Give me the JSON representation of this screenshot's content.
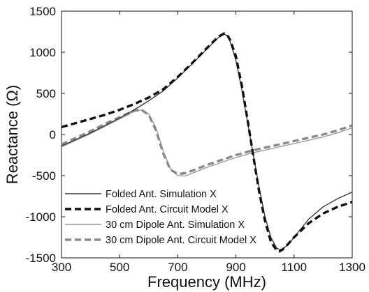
{
  "chart_data": {
    "type": "line",
    "title": "",
    "xlabel": "Frequency (MHz)",
    "ylabel": "Reactance (Ω)",
    "xlim": [
      300,
      1300
    ],
    "ylim": [
      -1500,
      1500
    ],
    "xticks": [
      "300",
      "500",
      "700",
      "900",
      "1100",
      "1300"
    ],
    "yticks": [
      "1500",
      "1000",
      "500",
      "0",
      "-500",
      "-1000",
      "-1500"
    ],
    "grid": false,
    "legend_position": "bottom-left",
    "series": [
      {
        "name": "Folded Ant. Simulation X",
        "color": "#3a3a3a",
        "style": "solid-thin",
        "x": [
          300,
          350,
          400,
          450,
          500,
          550,
          600,
          650,
          700,
          750,
          800,
          820,
          840,
          860,
          870,
          880,
          900,
          920,
          940,
          960,
          980,
          1000,
          1020,
          1040,
          1050,
          1060,
          1080,
          1100,
          1150,
          1200,
          1250,
          1300
        ],
        "y": [
          -140,
          -60,
          20,
          110,
          200,
          300,
          410,
          530,
          690,
          860,
          1040,
          1110,
          1180,
          1220,
          1200,
          1130,
          900,
          550,
          150,
          -250,
          -650,
          -1000,
          -1250,
          -1380,
          -1400,
          -1390,
          -1340,
          -1250,
          -1030,
          -880,
          -780,
          -700
        ]
      },
      {
        "name": "Folded Ant. Circuit Model X",
        "color": "#111111",
        "style": "dashed-thick",
        "x": [
          300,
          350,
          400,
          450,
          500,
          550,
          600,
          650,
          700,
          750,
          800,
          820,
          840,
          860,
          870,
          880,
          900,
          920,
          940,
          960,
          980,
          1000,
          1020,
          1040,
          1050,
          1060,
          1080,
          1100,
          1150,
          1200,
          1250,
          1300
        ],
        "y": [
          90,
          140,
          190,
          240,
          300,
          370,
          450,
          550,
          700,
          870,
          1050,
          1120,
          1190,
          1230,
          1210,
          1150,
          950,
          600,
          180,
          -270,
          -700,
          -1050,
          -1300,
          -1410,
          -1420,
          -1400,
          -1330,
          -1250,
          -1080,
          -960,
          -880,
          -820
        ]
      },
      {
        "name": "30 cm Dipole Ant. Simulation X",
        "color": "#9a9a9a",
        "style": "solid-thin",
        "x": [
          300,
          350,
          400,
          450,
          500,
          550,
          575,
          600,
          625,
          650,
          675,
          700,
          725,
          750,
          800,
          850,
          900,
          950,
          1000,
          1050,
          1100,
          1150,
          1200,
          1250,
          1300
        ],
        "y": [
          -150,
          -70,
          10,
          100,
          190,
          280,
          300,
          250,
          80,
          -200,
          -420,
          -500,
          -505,
          -470,
          -400,
          -340,
          -280,
          -230,
          -190,
          -150,
          -110,
          -70,
          -30,
          20,
          80
        ]
      },
      {
        "name": "30 cm Dipole Ant. Circuit Model X",
        "color": "#8a8a8a",
        "style": "dashed-thick",
        "x": [
          300,
          350,
          400,
          450,
          500,
          550,
          575,
          600,
          625,
          650,
          675,
          700,
          725,
          750,
          800,
          850,
          900,
          950,
          1000,
          1050,
          1100,
          1150,
          1200,
          1250,
          1300
        ],
        "y": [
          -120,
          -40,
          40,
          130,
          210,
          290,
          300,
          240,
          50,
          -230,
          -430,
          -480,
          -470,
          -440,
          -370,
          -310,
          -250,
          -200,
          -160,
          -120,
          -80,
          -40,
          0,
          50,
          110
        ]
      }
    ]
  }
}
